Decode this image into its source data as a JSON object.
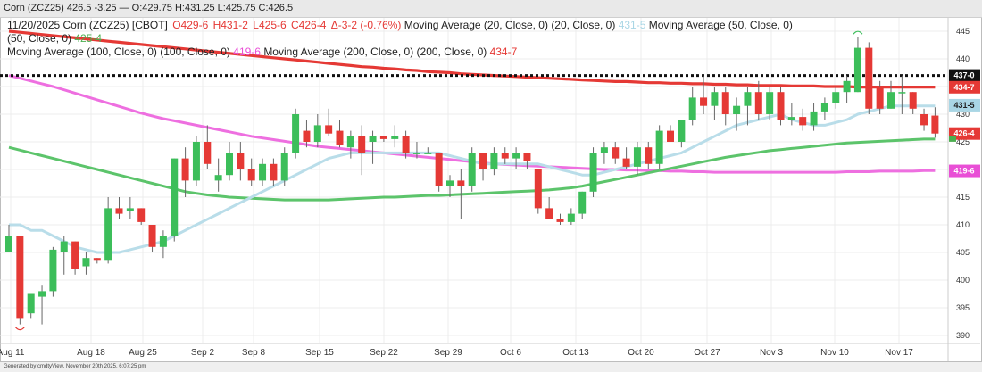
{
  "window": {
    "title": "Corn (ZCZ25) 426.5 -3.25 — O:429.75 H:431.25 L:425.75 C:426.5"
  },
  "legend": {
    "date": "11/20/2025",
    "name": "Corn (ZCZ25) [CBOT]",
    "ohlc": [
      {
        "text": "O429-6",
        "color": "#e53935"
      },
      {
        "text": "H431-2",
        "color": "#e53935"
      },
      {
        "text": "L425-6",
        "color": "#e53935"
      },
      {
        "text": "C426-4",
        "color": "#e53935"
      },
      {
        "text": "Δ-3-2 (-0.76%)",
        "color": "#e53935"
      }
    ],
    "ma": [
      {
        "label": "Moving Average (20, Close, 0)",
        "params": "(20, Close, 0)",
        "value": "431-5",
        "color": "#a9d6e5"
      },
      {
        "label": "Moving Average (50, Close, 0)",
        "params": "(50, Close, 0)",
        "value": "425-4",
        "color": "#4caf50"
      },
      {
        "label": "Moving Average (100, Close, 0)",
        "params": "(100, Close, 0)",
        "value": "419-6",
        "color": "#e94fd6"
      },
      {
        "label": "Moving Average (200, Close, 0)",
        "params": "(200, Close, 0)",
        "value": "434-7",
        "color": "#e53935"
      }
    ]
  },
  "footer": "Generated by cmdtyView, November 20th 2025, 6:07:25 pm",
  "chart_data": {
    "type": "candlestick",
    "title": "Corn (ZCZ25) [CBOT]",
    "y_ticks": [
      390,
      395,
      400,
      405,
      410,
      415,
      420,
      425,
      430,
      435,
      440,
      445
    ],
    "ylim": [
      388,
      447
    ],
    "x_labels": [
      "Aug 11",
      "Aug 18",
      "Aug 25",
      "Sep 2",
      "Sep 8",
      "Sep 15",
      "Sep 22",
      "Sep 29",
      "Oct 6",
      "Oct 13",
      "Oct 20",
      "Oct 27",
      "Nov 3",
      "Nov 10",
      "Nov 17"
    ],
    "candles": [
      {
        "o": 405,
        "h": 410,
        "l": 405,
        "c": 408
      },
      {
        "o": 408,
        "h": 408,
        "l": 392,
        "c": 393
      },
      {
        "o": 394,
        "h": 397.5,
        "l": 393,
        "c": 397.5
      },
      {
        "o": 397,
        "h": 399,
        "l": 392,
        "c": 398
      },
      {
        "o": 398,
        "h": 406,
        "l": 397,
        "c": 405.5
      },
      {
        "o": 405,
        "h": 408,
        "l": 401,
        "c": 407
      },
      {
        "o": 407,
        "h": 407,
        "l": 401,
        "c": 402
      },
      {
        "o": 402.5,
        "h": 405,
        "l": 401,
        "c": 404
      },
      {
        "o": 404,
        "h": 404,
        "l": 403,
        "c": 403.5
      },
      {
        "o": 403.5,
        "h": 415,
        "l": 403,
        "c": 413
      },
      {
        "o": 413,
        "h": 415,
        "l": 411,
        "c": 412
      },
      {
        "o": 412.5,
        "h": 415,
        "l": 411,
        "c": 413
      },
      {
        "o": 413,
        "h": 413,
        "l": 410,
        "c": 410.5
      },
      {
        "o": 410,
        "h": 410,
        "l": 405,
        "c": 406
      },
      {
        "o": 406,
        "h": 409,
        "l": 404,
        "c": 408
      },
      {
        "o": 408,
        "h": 422,
        "l": 407,
        "c": 422
      },
      {
        "o": 422,
        "h": 424,
        "l": 415,
        "c": 418
      },
      {
        "o": 418,
        "h": 426,
        "l": 417,
        "c": 425
      },
      {
        "o": 425,
        "h": 428,
        "l": 420,
        "c": 421
      },
      {
        "o": 418,
        "h": 422,
        "l": 416,
        "c": 419
      },
      {
        "o": 419,
        "h": 425,
        "l": 418,
        "c": 423
      },
      {
        "o": 423,
        "h": 425,
        "l": 418,
        "c": 420
      },
      {
        "o": 420,
        "h": 422,
        "l": 417,
        "c": 418
      },
      {
        "o": 418,
        "h": 422,
        "l": 417,
        "c": 421
      },
      {
        "o": 421,
        "h": 422,
        "l": 417,
        "c": 418
      },
      {
        "o": 418,
        "h": 424,
        "l": 417,
        "c": 423
      },
      {
        "o": 423,
        "h": 431,
        "l": 422,
        "c": 430
      },
      {
        "o": 427,
        "h": 429,
        "l": 424,
        "c": 425
      },
      {
        "o": 425,
        "h": 430,
        "l": 424,
        "c": 428
      },
      {
        "o": 428,
        "h": 431,
        "l": 426,
        "c": 426.5
      },
      {
        "o": 427,
        "h": 429,
        "l": 424,
        "c": 424.5
      },
      {
        "o": 424,
        "h": 427,
        "l": 422,
        "c": 426
      },
      {
        "o": 426,
        "h": 428,
        "l": 419,
        "c": 423
      },
      {
        "o": 425,
        "h": 427,
        "l": 421,
        "c": 426
      },
      {
        "o": 426,
        "h": 426,
        "l": 425,
        "c": 425.5
      },
      {
        "o": 425.5,
        "h": 428,
        "l": 424,
        "c": 426
      },
      {
        "o": 426,
        "h": 427,
        "l": 422,
        "c": 423
      },
      {
        "o": 423,
        "h": 425,
        "l": 422,
        "c": 423
      },
      {
        "o": 423,
        "h": 424,
        "l": 423,
        "c": 423
      },
      {
        "o": 423,
        "h": 423,
        "l": 416,
        "c": 417
      },
      {
        "o": 417,
        "h": 419,
        "l": 415,
        "c": 418
      },
      {
        "o": 418,
        "h": 420,
        "l": 411,
        "c": 417
      },
      {
        "o": 417,
        "h": 424,
        "l": 416,
        "c": 423
      },
      {
        "o": 423,
        "h": 423,
        "l": 418,
        "c": 420
      },
      {
        "o": 420,
        "h": 424,
        "l": 419,
        "c": 423
      },
      {
        "o": 423,
        "h": 424,
        "l": 421,
        "c": 422
      },
      {
        "o": 422,
        "h": 424,
        "l": 420,
        "c": 423
      },
      {
        "o": 423,
        "h": 423,
        "l": 420,
        "c": 421.5
      },
      {
        "o": 420,
        "h": 420,
        "l": 412,
        "c": 413
      },
      {
        "o": 413,
        "h": 415,
        "l": 411,
        "c": 411
      },
      {
        "o": 411,
        "h": 412,
        "l": 410,
        "c": 410.5
      },
      {
        "o": 410.5,
        "h": 413,
        "l": 410,
        "c": 412
      },
      {
        "o": 412,
        "h": 416,
        "l": 411,
        "c": 416
      },
      {
        "o": 416,
        "h": 424,
        "l": 415,
        "c": 423
      },
      {
        "o": 423,
        "h": 425,
        "l": 421,
        "c": 424
      },
      {
        "o": 424,
        "h": 425,
        "l": 421,
        "c": 422
      },
      {
        "o": 422,
        "h": 424,
        "l": 420,
        "c": 420.5
      },
      {
        "o": 420.5,
        "h": 425,
        "l": 419,
        "c": 424
      },
      {
        "o": 424,
        "h": 425,
        "l": 420,
        "c": 421
      },
      {
        "o": 421,
        "h": 428,
        "l": 420,
        "c": 427
      },
      {
        "o": 427,
        "h": 428,
        "l": 425,
        "c": 425
      },
      {
        "o": 425,
        "h": 429,
        "l": 424,
        "c": 429
      },
      {
        "o": 429,
        "h": 435,
        "l": 428,
        "c": 433
      },
      {
        "o": 433,
        "h": 437,
        "l": 430,
        "c": 431.5
      },
      {
        "o": 431.5,
        "h": 435,
        "l": 429,
        "c": 434
      },
      {
        "o": 434,
        "h": 435,
        "l": 428,
        "c": 430
      },
      {
        "o": 430,
        "h": 433,
        "l": 427,
        "c": 431.5
      },
      {
        "o": 431.5,
        "h": 435,
        "l": 428,
        "c": 434
      },
      {
        "o": 434,
        "h": 436,
        "l": 429,
        "c": 430
      },
      {
        "o": 430,
        "h": 435,
        "l": 429,
        "c": 434
      },
      {
        "o": 434,
        "h": 435,
        "l": 428,
        "c": 429
      },
      {
        "o": 429,
        "h": 432,
        "l": 428,
        "c": 429.5
      },
      {
        "o": 429.5,
        "h": 431,
        "l": 427,
        "c": 428
      },
      {
        "o": 428,
        "h": 432,
        "l": 427,
        "c": 430.5
      },
      {
        "o": 430.5,
        "h": 433,
        "l": 429,
        "c": 432
      },
      {
        "o": 432,
        "h": 435,
        "l": 431,
        "c": 434
      },
      {
        "o": 434,
        "h": 437,
        "l": 432,
        "c": 436
      },
      {
        "o": 434,
        "h": 444,
        "l": 434,
        "c": 442
      },
      {
        "o": 442,
        "h": 443,
        "l": 430,
        "c": 431
      },
      {
        "o": 435,
        "h": 436,
        "l": 430,
        "c": 431
      },
      {
        "o": 431,
        "h": 436,
        "l": 431,
        "c": 434
      },
      {
        "o": 434,
        "h": 437,
        "l": 430,
        "c": 434
      },
      {
        "o": 434,
        "h": 434,
        "l": 430,
        "c": 431
      },
      {
        "o": 430,
        "h": 431,
        "l": 427,
        "c": 428
      },
      {
        "o": 429.75,
        "h": 431.25,
        "l": 425.75,
        "c": 426.5
      }
    ],
    "ma20": [
      410,
      410,
      409,
      409,
      408,
      407,
      406,
      405.5,
      405,
      405,
      405,
      405.5,
      406,
      406.5,
      407,
      408,
      409,
      410,
      411,
      412,
      413,
      414,
      415,
      416,
      417,
      418,
      419,
      420,
      421,
      422,
      422.5,
      423,
      423,
      423,
      423,
      423,
      423,
      423,
      423,
      423,
      422.5,
      422,
      421.5,
      421,
      421,
      421,
      421,
      421,
      421,
      420.5,
      420,
      419.5,
      419,
      419,
      419.5,
      420,
      420.5,
      421,
      421.5,
      422,
      422.5,
      423,
      424,
      425,
      426,
      427,
      428,
      428.5,
      429,
      429.5,
      430,
      429,
      428.5,
      428,
      428,
      428.5,
      429,
      430,
      430.5,
      431,
      431.5,
      431.5,
      431.5,
      431.5,
      431.5
    ],
    "ma50": [
      424,
      423.5,
      423,
      422.5,
      422,
      421.5,
      421,
      420.5,
      420,
      419.5,
      419,
      418.5,
      418,
      417.5,
      417,
      416.5,
      416,
      415.7,
      415.4,
      415.2,
      415,
      414.9,
      414.8,
      414.7,
      414.6,
      414.5,
      414.5,
      414.5,
      414.5,
      414.5,
      414.6,
      414.7,
      414.8,
      414.9,
      415,
      415,
      415.1,
      415.2,
      415.3,
      415.3,
      415.4,
      415.5,
      415.6,
      415.7,
      415.8,
      415.9,
      416,
      416.1,
      416.2,
      416.3,
      416.5,
      416.7,
      417,
      417.4,
      417.8,
      418.2,
      418.6,
      419,
      419.4,
      419.8,
      420.2,
      420.6,
      421,
      421.4,
      421.8,
      422.2,
      422.5,
      422.8,
      423.1,
      423.4,
      423.6,
      423.8,
      424,
      424.2,
      424.4,
      424.6,
      424.8,
      424.9,
      425,
      425.1,
      425.2,
      425.3,
      425.4,
      425.5,
      425.5
    ],
    "ma100": [
      437,
      436.5,
      436,
      435.5,
      435,
      434.4,
      433.8,
      433.2,
      432.6,
      432,
      431.4,
      430.8,
      430.2,
      429.7,
      429.2,
      428.8,
      428.4,
      428,
      427.6,
      427.2,
      426.8,
      426.4,
      426,
      425.7,
      425.4,
      425.1,
      424.8,
      424.5,
      424.2,
      424,
      423.8,
      423.6,
      423.4,
      423.2,
      423,
      422.8,
      422.6,
      422.4,
      422.2,
      422,
      421.8,
      421.6,
      421.4,
      421.2,
      421,
      420.9,
      420.8,
      420.7,
      420.6,
      420.5,
      420.4,
      420.3,
      420.2,
      420.1,
      420,
      420,
      419.9,
      419.9,
      419.8,
      419.8,
      419.7,
      419.7,
      419.6,
      419.6,
      419.5,
      419.5,
      419.5,
      419.5,
      419.5,
      419.5,
      419.5,
      419.5,
      419.5,
      419.5,
      419.5,
      419.5,
      419.6,
      419.6,
      419.6,
      419.7,
      419.7,
      419.7,
      419.7,
      419.8,
      419.8
    ],
    "ma200": [
      445,
      444.8,
      444.6,
      444.4,
      444.2,
      444,
      443.8,
      443.6,
      443.4,
      443.2,
      443,
      442.8,
      442.6,
      442.4,
      442.2,
      442,
      441.8,
      441.6,
      441.4,
      441.2,
      441,
      440.8,
      440.6,
      440.4,
      440.2,
      440,
      439.8,
      439.6,
      439.4,
      439.2,
      439,
      438.8,
      438.6,
      438.5,
      438.3,
      438.2,
      438,
      437.9,
      437.7,
      437.6,
      437.5,
      437.3,
      437.2,
      437.1,
      437,
      436.9,
      436.8,
      436.7,
      436.6,
      436.5,
      436.4,
      436.3,
      436.2,
      436.1,
      436,
      435.9,
      435.9,
      435.8,
      435.7,
      435.7,
      435.6,
      435.6,
      435.5,
      435.5,
      435.4,
      435.4,
      435.3,
      435.3,
      435.2,
      435.2,
      435.2,
      435.1,
      435.1,
      435.1,
      435,
      435,
      435,
      434.9,
      434.9,
      434.9,
      434.9,
      434.9,
      434.9,
      434.9,
      434.9
    ],
    "current_line": 437,
    "price_tags": [
      {
        "value": 437,
        "text": "437-0",
        "color": "#111111"
      },
      {
        "value": 434.875,
        "text": "434-7",
        "color": "#e53935"
      },
      {
        "value": 431.625,
        "text": "431-5",
        "color": "#a9d6e5"
      },
      {
        "value": 426.5,
        "text": "426-4",
        "color": "#e53935"
      },
      {
        "value": 425.5,
        "text": "",
        "color": "#4caf50"
      },
      {
        "value": 419.75,
        "text": "419-6",
        "color": "#e94fd6"
      }
    ]
  }
}
